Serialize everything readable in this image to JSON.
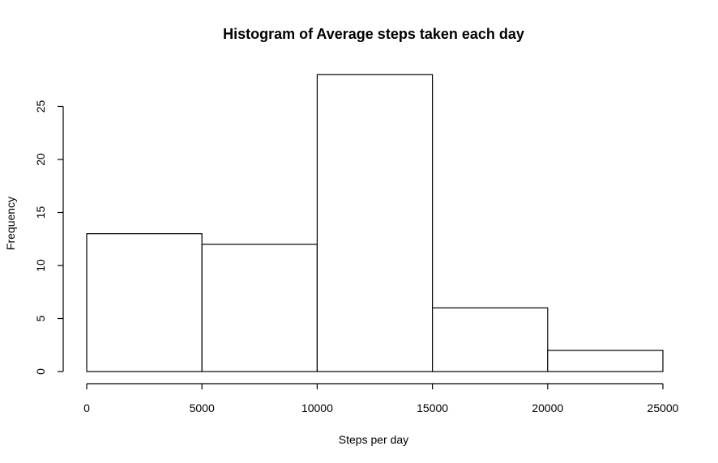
{
  "chart_data": {
    "type": "bar",
    "title": "Histogram of Average steps taken each day",
    "xlabel": "Steps per day",
    "ylabel": "Frequency",
    "bins": [
      {
        "from": 0,
        "to": 5000,
        "count": 13
      },
      {
        "from": 5000,
        "to": 10000,
        "count": 12
      },
      {
        "from": 10000,
        "to": 15000,
        "count": 28
      },
      {
        "from": 15000,
        "to": 20000,
        "count": 6
      },
      {
        "from": 20000,
        "to": 25000,
        "count": 2
      }
    ],
    "xlim": [
      0,
      25000
    ],
    "ylim": [
      0,
      28
    ],
    "x_ticks": [
      0,
      5000,
      10000,
      15000,
      20000,
      25000
    ],
    "y_ticks": [
      0,
      5,
      10,
      15,
      20,
      25
    ],
    "grid": false,
    "bar_fill": "#ffffff",
    "bar_stroke": "#000000"
  }
}
